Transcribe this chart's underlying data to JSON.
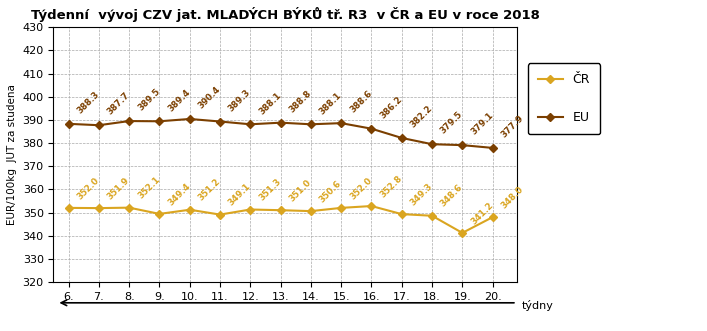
{
  "title": "Týdenní  vývoj CZV jat. MLADÝCH BÝKŮ tř. R3  v ČR a EU v roce 2018",
  "xlabel": "týdny",
  "ylabel": "EUR/100kg  JUT za studena",
  "weeks": [
    6,
    7,
    8,
    9,
    10,
    11,
    12,
    13,
    14,
    15,
    16,
    17,
    18,
    19,
    20
  ],
  "eu_values": [
    388.3,
    387.7,
    389.5,
    389.4,
    390.4,
    389.3,
    388.1,
    388.8,
    388.1,
    388.6,
    386.2,
    382.2,
    379.5,
    379.1,
    377.9
  ],
  "cr_values": [
    352.0,
    351.9,
    352.1,
    349.4,
    351.2,
    349.1,
    351.3,
    351.0,
    350.6,
    352.0,
    352.8,
    349.3,
    348.6,
    341.2,
    348.0
  ],
  "eu_color": "#7B3F00",
  "cr_color": "#DAA520",
  "ylim_min": 320,
  "ylim_max": 430,
  "ytick_step": 10,
  "title_color": "#000000",
  "bg_color": "#FFFFFF",
  "grid_color": "#AAAAAA"
}
